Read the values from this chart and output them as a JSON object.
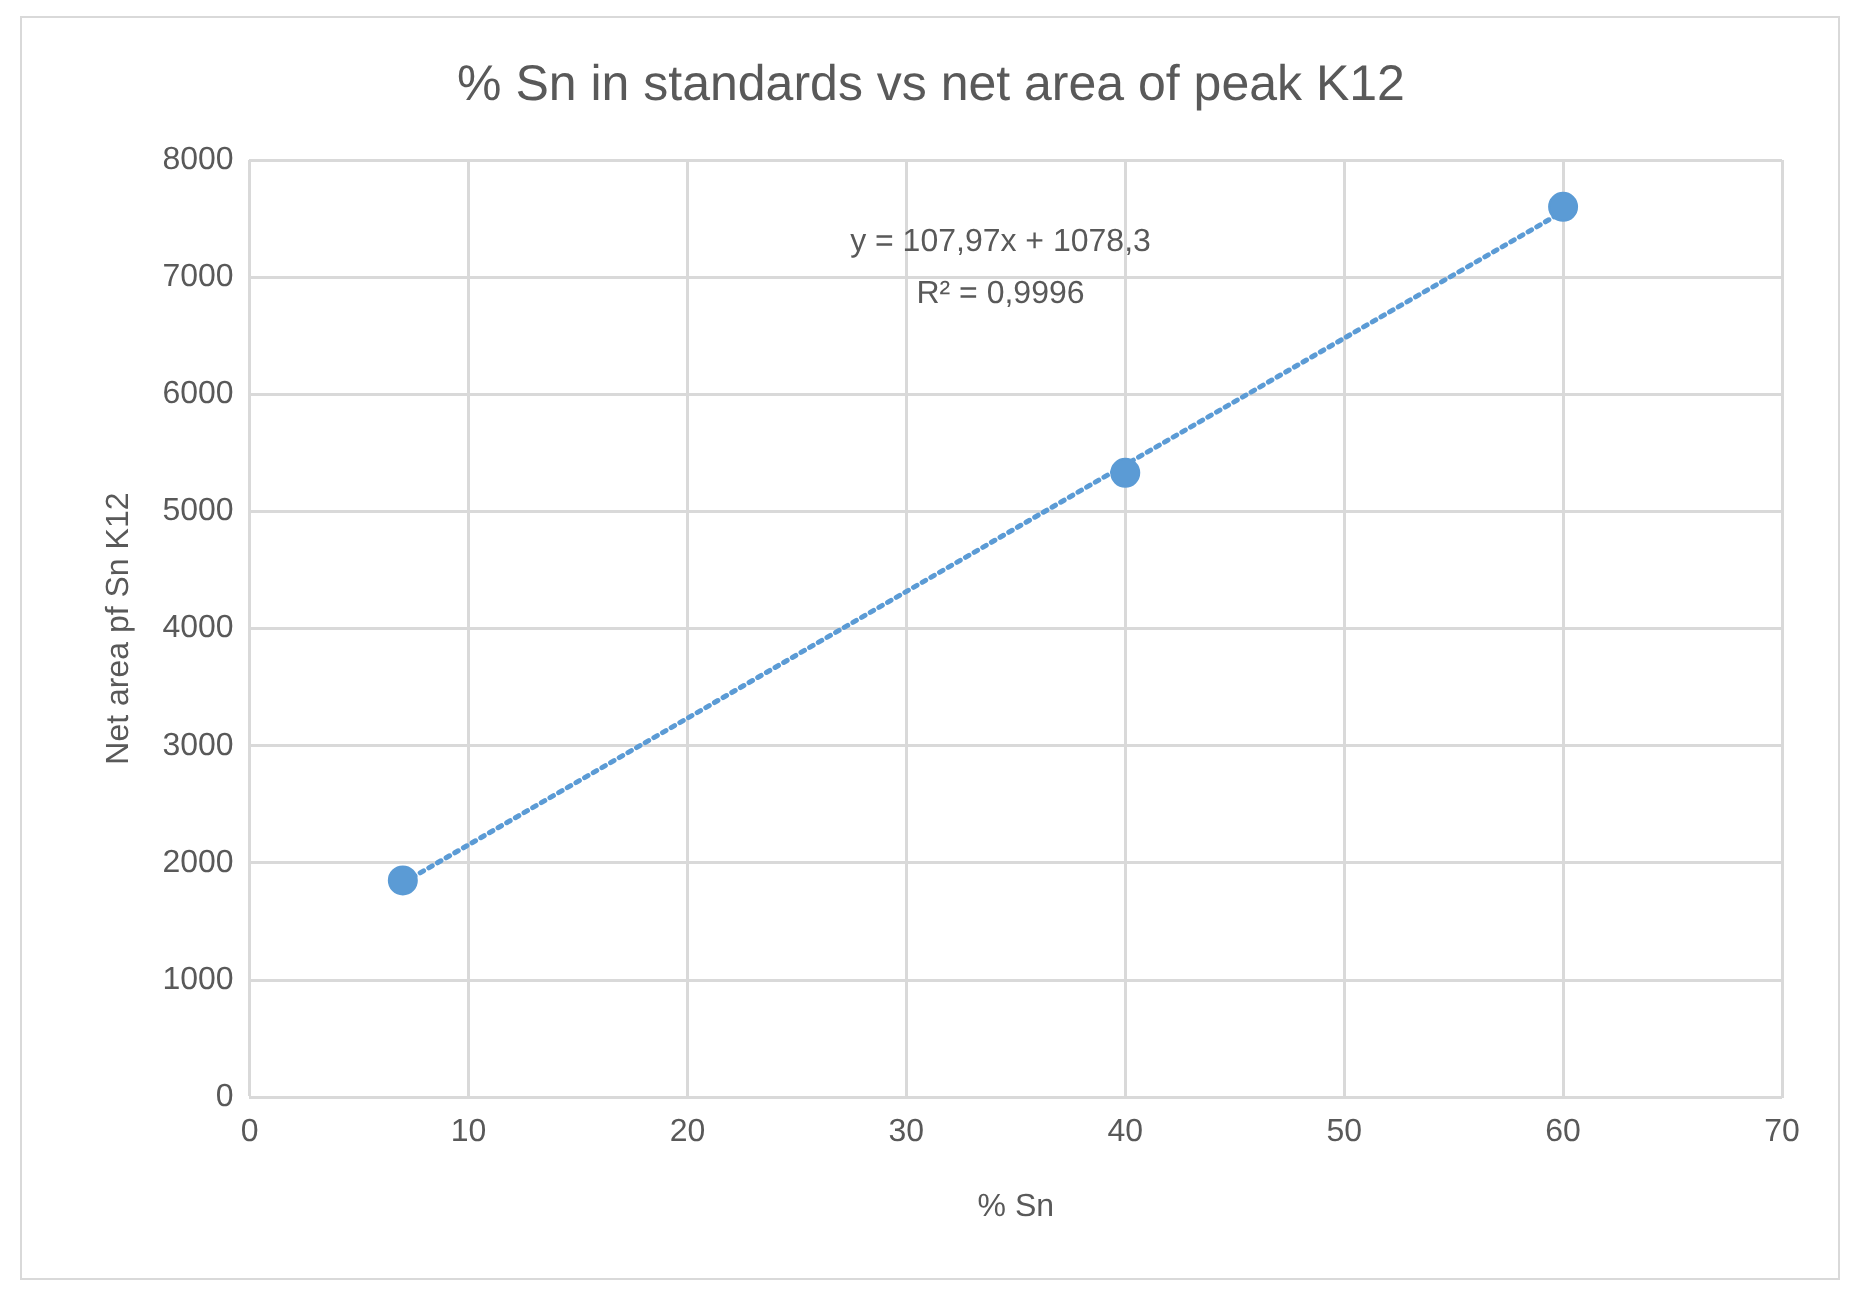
{
  "chart_data": {
    "type": "scatter",
    "title": "% Sn in standards vs net area of peak K12",
    "xlabel": "% Sn",
    "ylabel": "Net area pf Sn K12",
    "x": [
      7,
      40,
      60
    ],
    "series": [
      {
        "type": "scatter",
        "color": "#5b9bd5",
        "values": [
          1850,
          5330,
          7600
        ],
        "marker": "circle"
      },
      {
        "type": "line",
        "color": "#5b9bd5",
        "x": [
          7,
          60
        ],
        "values": [
          1830,
          7560
        ],
        "line_style": "dotted",
        "marker": "none"
      }
    ],
    "xlim": [
      0,
      70
    ],
    "xticks": [
      0,
      10,
      20,
      30,
      40,
      50,
      60,
      70
    ],
    "ylim": [
      0,
      8000
    ],
    "yticks": [
      0,
      1000,
      2000,
      3000,
      4000,
      5000,
      6000,
      7000,
      8000
    ],
    "grid": true,
    "legend": false,
    "annotations": [
      "y = 107,97x + 1078,3",
      "R² = 0,9996"
    ]
  }
}
